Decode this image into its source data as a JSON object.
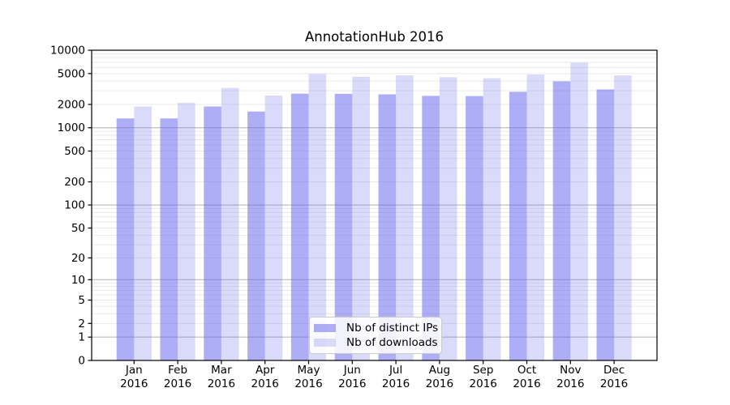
{
  "chart_data": {
    "type": "bar",
    "title": "AnnotationHub 2016",
    "categories": [
      "Jan",
      "Feb",
      "Mar",
      "Apr",
      "May",
      "Jun",
      "Jul",
      "Aug",
      "Sep",
      "Oct",
      "Nov",
      "Dec"
    ],
    "x_year_label": "2016",
    "series": [
      {
        "name": "Nb of distinct IPs",
        "values": [
          1320,
          1320,
          1880,
          1620,
          2750,
          2740,
          2700,
          2580,
          2560,
          2910,
          3970,
          3120
        ],
        "fill": "#6b6bee",
        "opacity": 0.55,
        "rendered_color": "#adadf6"
      },
      {
        "name": "Nb of downloads",
        "values": [
          1880,
          2090,
          3260,
          2600,
          4930,
          4550,
          4740,
          4480,
          4350,
          4860,
          6900,
          4740
        ],
        "fill": "#6b6bee",
        "opacity": 0.25,
        "rendered_color": "#dbdbfa"
      }
    ],
    "yscale": "log1p",
    "ylim": [
      0,
      10000
    ],
    "yticks": [
      10000,
      5000,
      2000,
      1000,
      500,
      200,
      100,
      50,
      20,
      10,
      5,
      2,
      1,
      0
    ],
    "grid": {
      "show": true,
      "major_values": [
        1,
        10,
        100,
        1000,
        10000
      ],
      "major_color": "#b0b0b0",
      "minor_color": "#e9e9e9"
    },
    "legend": {
      "position": "lower-center-inside",
      "items": [
        "Nb of distinct IPs",
        "Nb of downloads"
      ]
    }
  }
}
